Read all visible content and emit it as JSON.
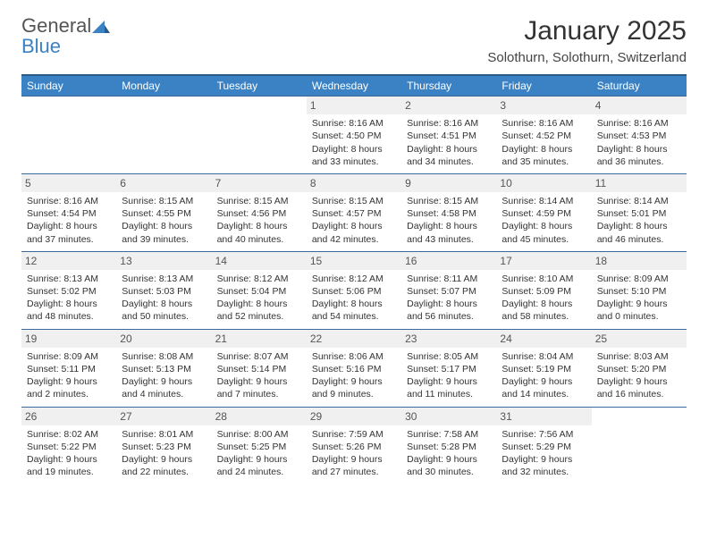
{
  "brand": {
    "name1": "General",
    "name2": "Blue"
  },
  "title": "January 2025",
  "location": "Solothurn, Solothurn, Switzerland",
  "colors": {
    "header_bg": "#3b82c4",
    "header_text": "#ffffff",
    "row_border": "#3b6a9a",
    "daynum_bg": "#f0f0f0",
    "body_text": "#333333"
  },
  "days_of_week": [
    "Sunday",
    "Monday",
    "Tuesday",
    "Wednesday",
    "Thursday",
    "Friday",
    "Saturday"
  ],
  "weeks": [
    [
      {
        "n": "",
        "sunrise": "",
        "sunset": "",
        "daylight": ""
      },
      {
        "n": "",
        "sunrise": "",
        "sunset": "",
        "daylight": ""
      },
      {
        "n": "",
        "sunrise": "",
        "sunset": "",
        "daylight": ""
      },
      {
        "n": "1",
        "sunrise": "8:16 AM",
        "sunset": "4:50 PM",
        "daylight": "8 hours and 33 minutes."
      },
      {
        "n": "2",
        "sunrise": "8:16 AM",
        "sunset": "4:51 PM",
        "daylight": "8 hours and 34 minutes."
      },
      {
        "n": "3",
        "sunrise": "8:16 AM",
        "sunset": "4:52 PM",
        "daylight": "8 hours and 35 minutes."
      },
      {
        "n": "4",
        "sunrise": "8:16 AM",
        "sunset": "4:53 PM",
        "daylight": "8 hours and 36 minutes."
      }
    ],
    [
      {
        "n": "5",
        "sunrise": "8:16 AM",
        "sunset": "4:54 PM",
        "daylight": "8 hours and 37 minutes."
      },
      {
        "n": "6",
        "sunrise": "8:15 AM",
        "sunset": "4:55 PM",
        "daylight": "8 hours and 39 minutes."
      },
      {
        "n": "7",
        "sunrise": "8:15 AM",
        "sunset": "4:56 PM",
        "daylight": "8 hours and 40 minutes."
      },
      {
        "n": "8",
        "sunrise": "8:15 AM",
        "sunset": "4:57 PM",
        "daylight": "8 hours and 42 minutes."
      },
      {
        "n": "9",
        "sunrise": "8:15 AM",
        "sunset": "4:58 PM",
        "daylight": "8 hours and 43 minutes."
      },
      {
        "n": "10",
        "sunrise": "8:14 AM",
        "sunset": "4:59 PM",
        "daylight": "8 hours and 45 minutes."
      },
      {
        "n": "11",
        "sunrise": "8:14 AM",
        "sunset": "5:01 PM",
        "daylight": "8 hours and 46 minutes."
      }
    ],
    [
      {
        "n": "12",
        "sunrise": "8:13 AM",
        "sunset": "5:02 PM",
        "daylight": "8 hours and 48 minutes."
      },
      {
        "n": "13",
        "sunrise": "8:13 AM",
        "sunset": "5:03 PM",
        "daylight": "8 hours and 50 minutes."
      },
      {
        "n": "14",
        "sunrise": "8:12 AM",
        "sunset": "5:04 PM",
        "daylight": "8 hours and 52 minutes."
      },
      {
        "n": "15",
        "sunrise": "8:12 AM",
        "sunset": "5:06 PM",
        "daylight": "8 hours and 54 minutes."
      },
      {
        "n": "16",
        "sunrise": "8:11 AM",
        "sunset": "5:07 PM",
        "daylight": "8 hours and 56 minutes."
      },
      {
        "n": "17",
        "sunrise": "8:10 AM",
        "sunset": "5:09 PM",
        "daylight": "8 hours and 58 minutes."
      },
      {
        "n": "18",
        "sunrise": "8:09 AM",
        "sunset": "5:10 PM",
        "daylight": "9 hours and 0 minutes."
      }
    ],
    [
      {
        "n": "19",
        "sunrise": "8:09 AM",
        "sunset": "5:11 PM",
        "daylight": "9 hours and 2 minutes."
      },
      {
        "n": "20",
        "sunrise": "8:08 AM",
        "sunset": "5:13 PM",
        "daylight": "9 hours and 4 minutes."
      },
      {
        "n": "21",
        "sunrise": "8:07 AM",
        "sunset": "5:14 PM",
        "daylight": "9 hours and 7 minutes."
      },
      {
        "n": "22",
        "sunrise": "8:06 AM",
        "sunset": "5:16 PM",
        "daylight": "9 hours and 9 minutes."
      },
      {
        "n": "23",
        "sunrise": "8:05 AM",
        "sunset": "5:17 PM",
        "daylight": "9 hours and 11 minutes."
      },
      {
        "n": "24",
        "sunrise": "8:04 AM",
        "sunset": "5:19 PM",
        "daylight": "9 hours and 14 minutes."
      },
      {
        "n": "25",
        "sunrise": "8:03 AM",
        "sunset": "5:20 PM",
        "daylight": "9 hours and 16 minutes."
      }
    ],
    [
      {
        "n": "26",
        "sunrise": "8:02 AM",
        "sunset": "5:22 PM",
        "daylight": "9 hours and 19 minutes."
      },
      {
        "n": "27",
        "sunrise": "8:01 AM",
        "sunset": "5:23 PM",
        "daylight": "9 hours and 22 minutes."
      },
      {
        "n": "28",
        "sunrise": "8:00 AM",
        "sunset": "5:25 PM",
        "daylight": "9 hours and 24 minutes."
      },
      {
        "n": "29",
        "sunrise": "7:59 AM",
        "sunset": "5:26 PM",
        "daylight": "9 hours and 27 minutes."
      },
      {
        "n": "30",
        "sunrise": "7:58 AM",
        "sunset": "5:28 PM",
        "daylight": "9 hours and 30 minutes."
      },
      {
        "n": "31",
        "sunrise": "7:56 AM",
        "sunset": "5:29 PM",
        "daylight": "9 hours and 32 minutes."
      },
      {
        "n": "",
        "sunrise": "",
        "sunset": "",
        "daylight": ""
      }
    ]
  ],
  "labels": {
    "sunrise": "Sunrise:",
    "sunset": "Sunset:",
    "daylight": "Daylight:"
  }
}
